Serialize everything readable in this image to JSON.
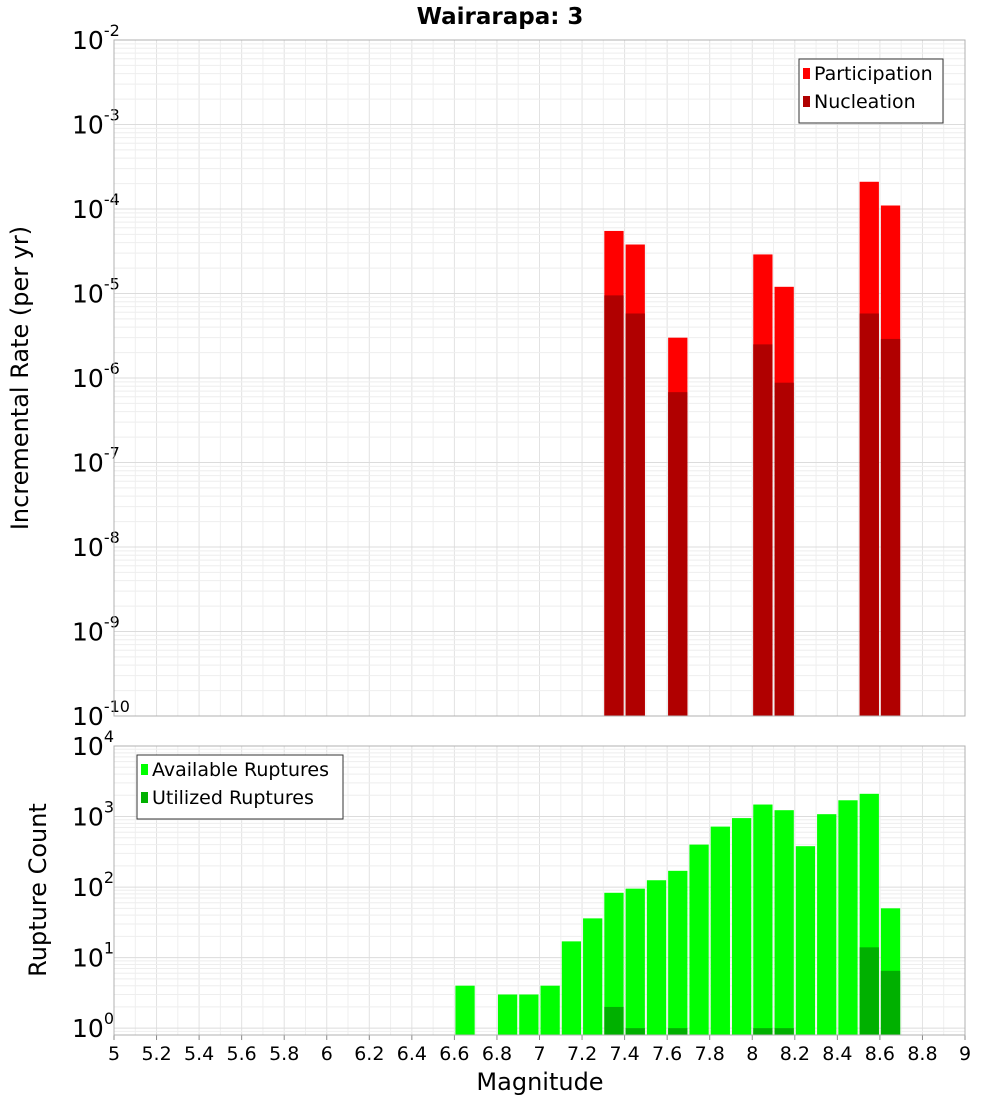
{
  "title": "Wairarapa: 3",
  "chart_data": [
    {
      "type": "bar",
      "name": "top",
      "ylabel": "Incremental Rate (per yr)",
      "yscale": "log",
      "ylim": [
        1e-10,
        0.01
      ],
      "xlim": [
        5,
        9
      ],
      "bar_width": 0.1,
      "grid": true,
      "legend_position": "top-right",
      "ytick_exponents": [
        "-10",
        "-9",
        "-8",
        "-7",
        "-6",
        "-5",
        "-4",
        "-3",
        "-2"
      ],
      "ytick_base": "10",
      "series": [
        {
          "name": "Participation",
          "color": "#ff0000",
          "points": [
            {
              "x": 7.35,
              "y": 5.5e-05
            },
            {
              "x": 7.45,
              "y": 3.8e-05
            },
            {
              "x": 7.65,
              "y": 3e-06
            },
            {
              "x": 8.05,
              "y": 2.9e-05
            },
            {
              "x": 8.15,
              "y": 1.2e-05
            },
            {
              "x": 8.55,
              "y": 0.00021
            },
            {
              "x": 8.65,
              "y": 0.00011
            }
          ]
        },
        {
          "name": "Nucleation",
          "color": "#b00000",
          "points": [
            {
              "x": 7.35,
              "y": 9.5e-06
            },
            {
              "x": 7.45,
              "y": 5.8e-06
            },
            {
              "x": 7.65,
              "y": 6.8e-07
            },
            {
              "x": 8.05,
              "y": 2.5e-06
            },
            {
              "x": 8.15,
              "y": 8.8e-07
            },
            {
              "x": 8.55,
              "y": 5.8e-06
            },
            {
              "x": 8.65,
              "y": 2.9e-06
            }
          ]
        }
      ]
    },
    {
      "type": "bar",
      "name": "bottom",
      "xlabel": "Magnitude",
      "ylabel": "Rupture Count",
      "yscale": "log",
      "ylim": [
        0.8,
        10000
      ],
      "xlim": [
        5,
        9
      ],
      "bar_width": 0.1,
      "grid": true,
      "legend_position": "top-left",
      "xticks": [
        "5",
        "5.2",
        "5.4",
        "5.6",
        "5.8",
        "6",
        "6.2",
        "6.4",
        "6.6",
        "6.8",
        "7",
        "7.2",
        "7.4",
        "7.6",
        "7.8",
        "8",
        "8.2",
        "8.4",
        "8.6",
        "8.8",
        "9"
      ],
      "ytick_exponents": [
        "0",
        "1",
        "2",
        "3",
        "4"
      ],
      "ytick_base": "10",
      "series": [
        {
          "name": "Available Ruptures",
          "color": "#00ff00",
          "points": [
            {
              "x": 6.65,
              "y": 4
            },
            {
              "x": 6.85,
              "y": 3
            },
            {
              "x": 6.95,
              "y": 3
            },
            {
              "x": 7.05,
              "y": 4
            },
            {
              "x": 7.15,
              "y": 17
            },
            {
              "x": 7.25,
              "y": 36
            },
            {
              "x": 7.35,
              "y": 83
            },
            {
              "x": 7.45,
              "y": 95
            },
            {
              "x": 7.55,
              "y": 125
            },
            {
              "x": 7.65,
              "y": 170
            },
            {
              "x": 7.75,
              "y": 400
            },
            {
              "x": 7.85,
              "y": 720
            },
            {
              "x": 7.95,
              "y": 950
            },
            {
              "x": 8.05,
              "y": 1480
            },
            {
              "x": 8.15,
              "y": 1230
            },
            {
              "x": 8.25,
              "y": 380
            },
            {
              "x": 8.35,
              "y": 1080
            },
            {
              "x": 8.45,
              "y": 1700
            },
            {
              "x": 8.55,
              "y": 2100
            },
            {
              "x": 8.65,
              "y": 50
            }
          ]
        },
        {
          "name": "Utilized Ruptures",
          "color": "#00b000",
          "points": [
            {
              "x": 7.35,
              "y": 2
            },
            {
              "x": 7.45,
              "y": 1
            },
            {
              "x": 7.65,
              "y": 1
            },
            {
              "x": 8.05,
              "y": 1
            },
            {
              "x": 8.15,
              "y": 1
            },
            {
              "x": 8.55,
              "y": 14
            },
            {
              "x": 8.65,
              "y": 6.5
            }
          ]
        }
      ]
    }
  ]
}
